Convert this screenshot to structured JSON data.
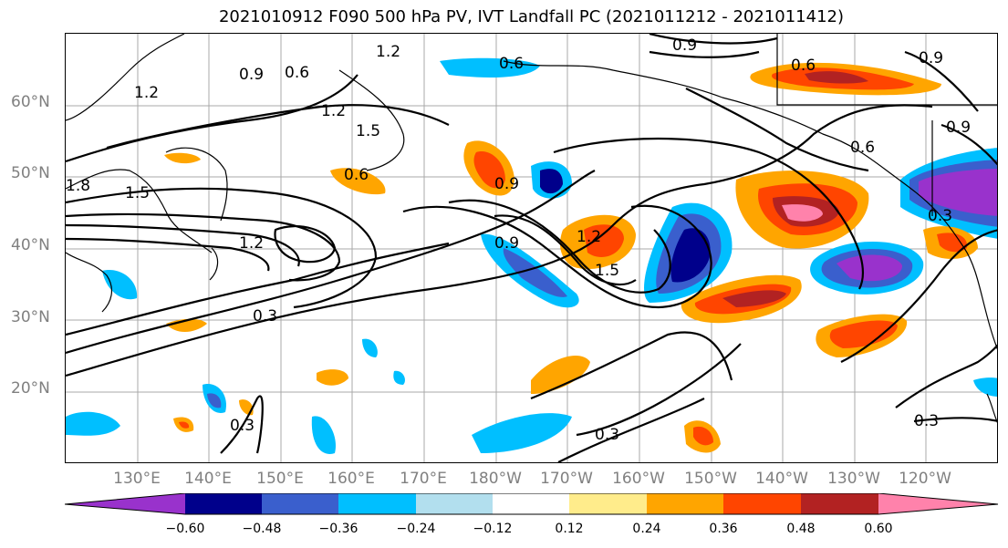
{
  "title": "2021010912 F090 500 hPa PV, IVT Landfall PC (2021011212 - 2021011412)",
  "latitude_labels": [
    "60°N",
    "50°N",
    "40°N",
    "30°N",
    "20°N"
  ],
  "longitude_labels": [
    "130°E",
    "140°E",
    "150°E",
    "160°E",
    "170°E",
    "180°W",
    "170°W",
    "160°W",
    "150°W",
    "140°W",
    "130°W",
    "120°W"
  ],
  "contour_labels": [
    "1.2",
    "0.9",
    "0.6",
    "0.9",
    "0.6",
    "0.6",
    "0.9",
    "1.2",
    "1.2",
    "1.5",
    "1.5",
    "1.8",
    "0.6",
    "0.9",
    "1.2",
    "0.9",
    "1.2",
    "1.5",
    "0.3",
    "0.6",
    "0.3",
    "0.9",
    "0.3",
    "0.3",
    "0.3"
  ],
  "colorbar": {
    "tick_labels": [
      "−0.60",
      "−0.48",
      "−0.36",
      "−0.24",
      "−0.12",
      "0.12",
      "0.24",
      "0.36",
      "0.48",
      "0.60"
    ],
    "colors": [
      "#9932CC",
      "#00008B",
      "#3A5FCD",
      "#00BFFF",
      "#B2DFEE",
      "#FFFFFF",
      "#FFEC8B",
      "#FFA500",
      "#FF4500",
      "#B22222",
      "#FF82AB"
    ]
  }
}
